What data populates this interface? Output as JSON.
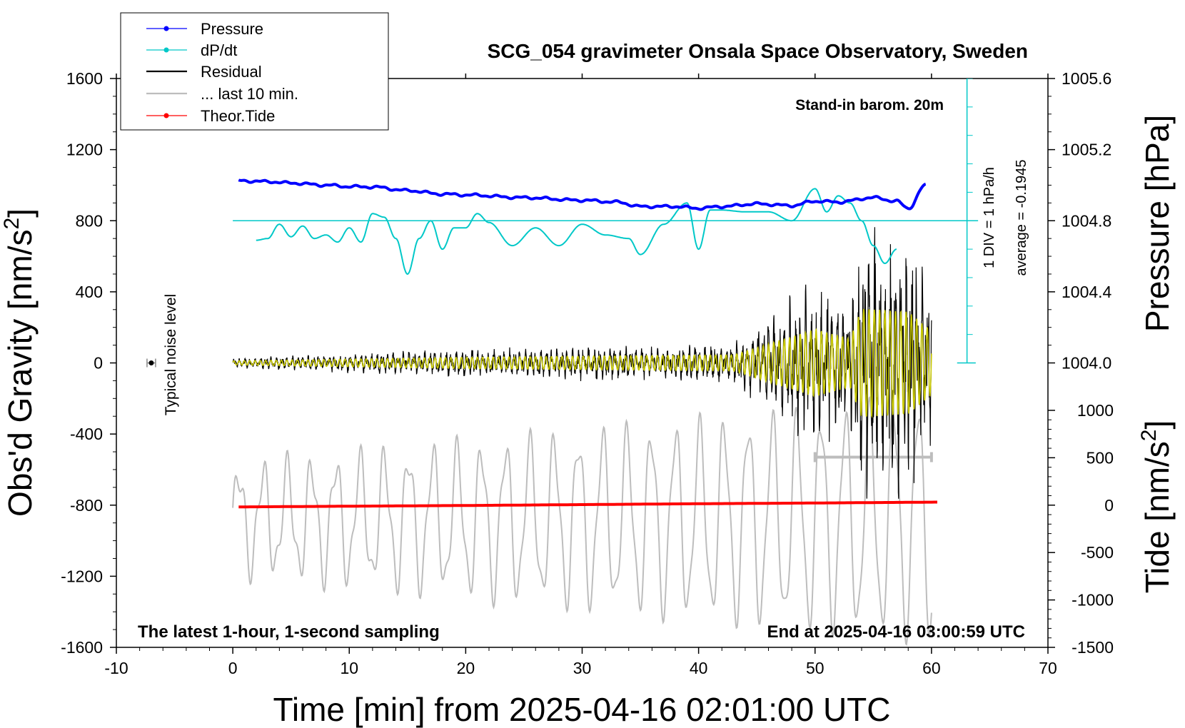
{
  "chart_data": {
    "type": "line",
    "title": "SCG_054 gravimeter Onsala Space Observatory, Sweden",
    "xlabel": "Time [min] from 2025-04-16 02:01:00 UTC",
    "ylabel_left": "Obs'd Gravity [nm/s",
    "ylabel_left_sup": "2",
    "ylabel_left_close": "]",
    "ylabel_right_top": "Pressure [hPa]",
    "ylabel_right_bottom": "Tide [nm/s",
    "ylabel_right_bottom_sup": "2",
    "ylabel_right_bottom_close": "]",
    "xlim": [
      -10,
      70
    ],
    "ylim": [
      -1600,
      1600
    ],
    "x_ticks": [
      -10,
      0,
      10,
      20,
      30,
      40,
      50,
      60,
      70
    ],
    "y_ticks": [
      1600,
      1200,
      800,
      400,
      0,
      -400,
      -800,
      -1200,
      -1600
    ],
    "pressure_ticks": [
      "1005.6",
      "1005.2",
      "1004.8",
      "1004.4",
      "1004.0"
    ],
    "pressure_tick_values": [
      1005.6,
      1005.2,
      1004.8,
      1004.4,
      1004.0
    ],
    "pressure_axis": {
      "value_at_800": 1004.8,
      "hpa_per_400_gravity": 0.4
    },
    "tide_ticks": [
      "1000",
      "500",
      "0",
      "-500",
      "-1000",
      "-1500"
    ],
    "tide_tick_values": [
      1000,
      500,
      0,
      -500,
      -1000,
      -1500
    ],
    "tide_axis": {
      "value_at_minus800": 0,
      "units_per_400_gravity": 750
    },
    "legend": [
      {
        "label": "Pressure",
        "color": "#0000ff",
        "marker": true
      },
      {
        "label": "dP/dt",
        "color": "#00c8c8",
        "marker": true
      },
      {
        "label": "Residual",
        "color": "#000000",
        "marker": false
      },
      {
        "label": "... last 10 min.",
        "color": "#bdbdbd",
        "marker": false
      },
      {
        "label": "Theor.Tide",
        "color": "#ff0000",
        "marker": true
      }
    ],
    "legend_position": "top-left",
    "annotations": {
      "stand_in": "Stand-in barom. 20m",
      "div_scale": "1 DIV = 1 hPa/h",
      "average": "average = -0.1945",
      "noise": "Typical noise level",
      "latest": "The latest 1-hour, 1-second sampling",
      "end": "End at 2025-04-16 03:00:59 UTC"
    },
    "noise_level": {
      "x": -7,
      "y": 0
    },
    "dpdt_baseline_gravity": 800,
    "residual_envelope": {
      "t": [
        0,
        20,
        43,
        50,
        53,
        54,
        58,
        60
      ],
      "amp": [
        25,
        70,
        100,
        420,
        300,
        680,
        640,
        400
      ]
    },
    "series": [
      {
        "name": "Pressure",
        "color": "#0000ff",
        "x": [
          0.5,
          3,
          5,
          8,
          10,
          12,
          15,
          18,
          20,
          25,
          30,
          33,
          35,
          38,
          40,
          42,
          45,
          48,
          50,
          52,
          55,
          57,
          58,
          59.5
        ],
        "values": [
          1025,
          1020,
          1012,
          1000,
          992,
          990,
          970,
          950,
          945,
          930,
          915,
          905,
          880,
          880,
          870,
          880,
          895,
          885,
          910,
          905,
          930,
          910,
          870,
          1000
        ]
      },
      {
        "name": "dP/dt",
        "color": "#00c8c8",
        "x": [
          2,
          3,
          4,
          5,
          6,
          7,
          8,
          9,
          10,
          11,
          12,
          13,
          14,
          15,
          16,
          17,
          18,
          19,
          20,
          21,
          22,
          24,
          26,
          28,
          30,
          32,
          34,
          35,
          37,
          39,
          40,
          41,
          42,
          44,
          46,
          48,
          50,
          51,
          52,
          53,
          54,
          55,
          56,
          57
        ],
        "values": [
          690,
          700,
          780,
          710,
          770,
          700,
          720,
          680,
          760,
          680,
          840,
          820,
          700,
          500,
          700,
          800,
          640,
          760,
          760,
          840,
          790,
          660,
          760,
          660,
          780,
          720,
          700,
          610,
          780,
          900,
          640,
          860,
          860,
          850,
          850,
          800,
          980,
          850,
          940,
          900,
          800,
          660,
          560,
          640
        ]
      },
      {
        "name": "Residual",
        "color": "#000000",
        "x_range": [
          0,
          60
        ],
        "note": "oscillating seismic signal, envelope given in residual_envelope"
      },
      {
        "name": "... last 10 min.",
        "color": "#bdbdbd",
        "x_range": [
          0,
          60
        ],
        "note": "grey trace of last 10 minutes, plotted around -800 gravity units"
      },
      {
        "name": "Theor.Tide",
        "color": "#ff0000",
        "x": [
          0.5,
          10,
          20,
          30,
          40,
          50,
          60.5
        ],
        "values": [
          -810,
          -806,
          -802,
          -797,
          -792,
          -788,
          -783
        ]
      }
    ],
    "grey_window_bar": {
      "x_start": 50,
      "x_end": 60,
      "y": -530
    }
  }
}
